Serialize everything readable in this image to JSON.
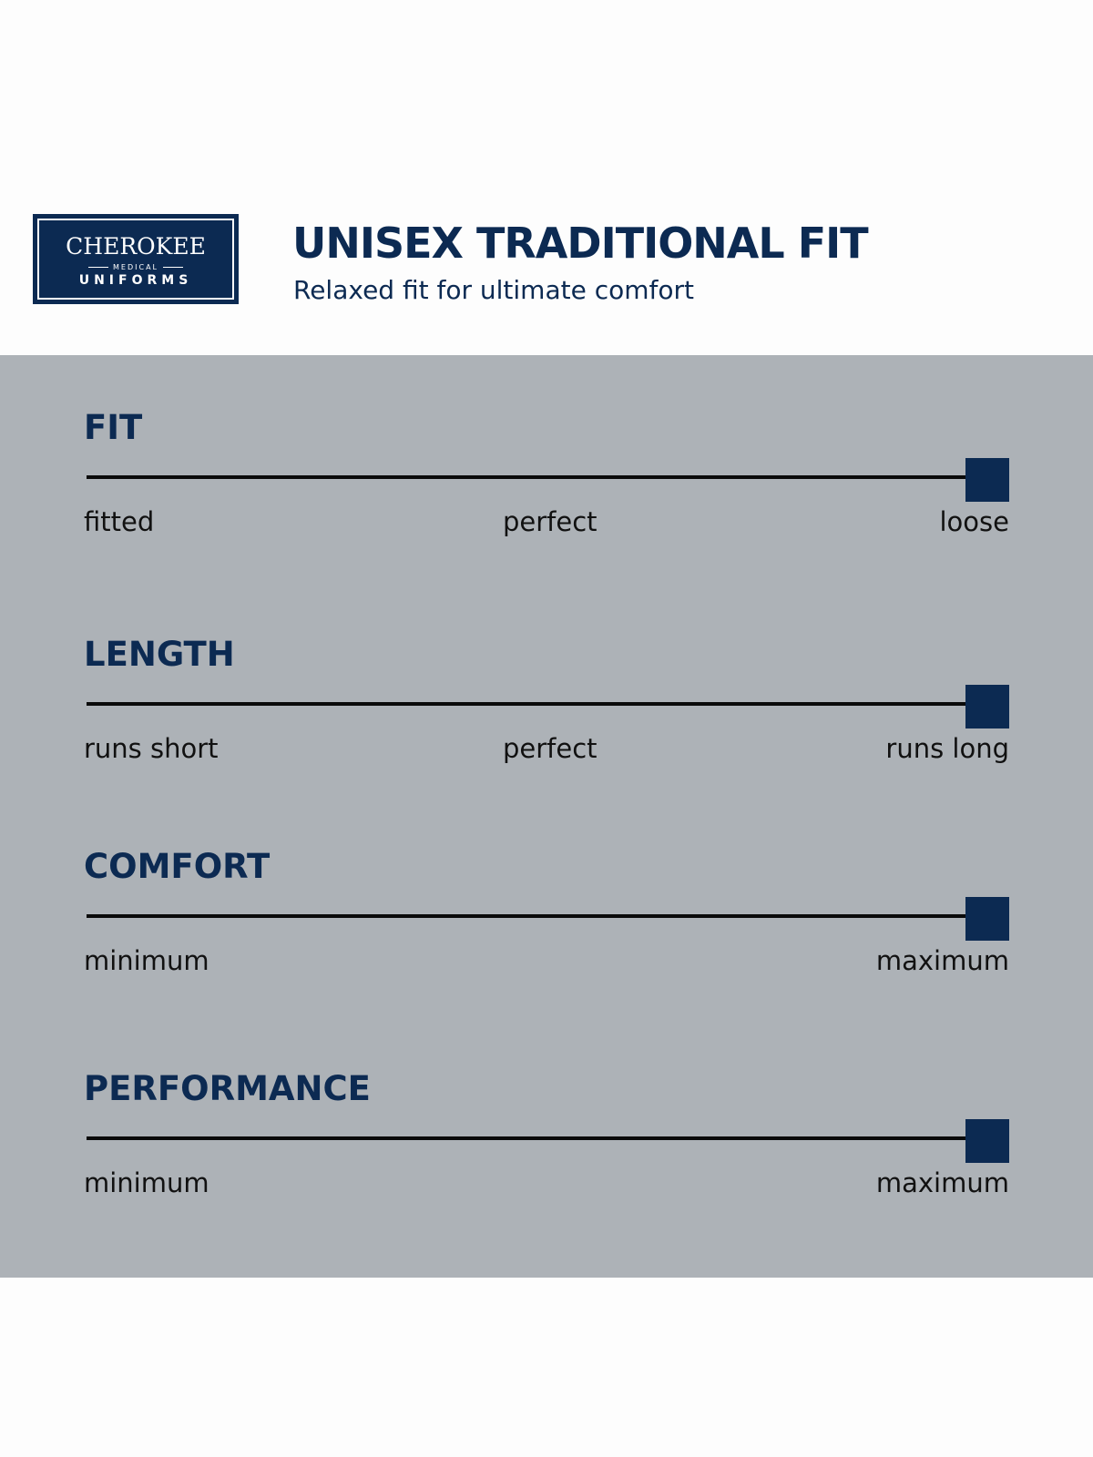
{
  "header": {
    "logo": {
      "brand": "CHEROKEE",
      "sub": "MEDICAL",
      "line2": "UNIFORMS"
    },
    "title": "UNISEX TRADITIONAL FIT",
    "subtitle": "Relaxed fit for ultimate comfort"
  },
  "colors": {
    "accent": "#0c2a52",
    "panel": "#adb2b7",
    "track": "#0a0a0a"
  },
  "scales": [
    {
      "heading": "FIT",
      "left": "fitted",
      "middle": "perfect",
      "right": "loose",
      "value": 1.0
    },
    {
      "heading": "LENGTH",
      "left": "runs short",
      "middle": "perfect",
      "right": "runs long",
      "value": 1.0
    },
    {
      "heading": "COMFORT",
      "left": "minimum",
      "right": "maximum",
      "value": 1.0
    },
    {
      "heading": "PERFORMANCE",
      "left": "minimum",
      "right": "maximum",
      "value": 1.0
    }
  ]
}
